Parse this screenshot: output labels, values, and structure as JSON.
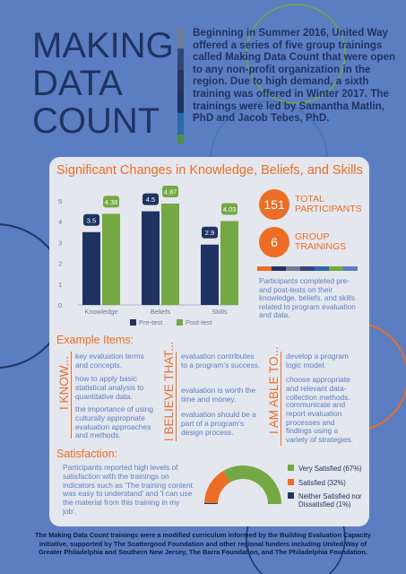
{
  "header": {
    "title_lines": [
      "MAKING",
      "DATA",
      "COUNT"
    ],
    "intro": "Beginning in Summer 2016, United Way offered a series of five group trainings called Making Data Count that were open to any non-profit organization in the region. Due to high demand, a sixth training was offered in Winter 2017. The trainings were led by Samantha Matlin, PhD and Jacob Tebes, PhD."
  },
  "colors": {
    "background": "#5b7ec2",
    "navy": "#1f3362",
    "green": "#74a843",
    "orange": "#ec6d25",
    "card": "#e4e7ee",
    "stripes": [
      "#6c7b96",
      "#31457a",
      "#243660",
      "#1f3362",
      "#2b6aa8",
      "#4f8f41"
    ]
  },
  "card": {
    "title": "Significant Changes in Knowledge, Beliefs, and Skills"
  },
  "chart_data": {
    "type": "bar",
    "categories": [
      "Knowledge",
      "Beliefs",
      "Skills"
    ],
    "series": [
      {
        "name": "Pre-test",
        "values": [
          3.5,
          4.5,
          2.9
        ],
        "labels": [
          "3.5",
          "4.5",
          "2.9"
        ],
        "color": "#1f3362"
      },
      {
        "name": "Post-test",
        "values": [
          4.38,
          4.87,
          4.03
        ],
        "labels": [
          "4.38",
          "4.87",
          "4.03"
        ],
        "color": "#74a843"
      }
    ],
    "y_ticks": [
      0,
      1,
      2,
      3,
      4,
      5
    ],
    "ylim": [
      0,
      5
    ],
    "legend_position": "bottom",
    "grid": false
  },
  "stats": {
    "participants": {
      "value": "151",
      "label_line1": "TOTAL",
      "label_line2": "PARTICIPANTS"
    },
    "trainings": {
      "value": "6",
      "label_line1": "GROUP",
      "label_line2": "TRAININGS"
    },
    "note": "Participants completed pre- and post-tests on their knowledge, beliefs, and skills related to program evaluation and data."
  },
  "examples": {
    "heading": "Example Items:",
    "know": {
      "label": "I KNOW...",
      "items": [
        "key evaluation terms and concepts.",
        "how to apply basic statistical analysis to quantitative data.",
        "the importance of using culturally appropriate evaluation approaches and methods."
      ]
    },
    "believe": {
      "label": "I BELIEVE THAT...",
      "items": [
        "evaluation contributes to a program's success.",
        "evaluation is worth the time and money.",
        "evaluation should be a part of a program's design process."
      ]
    },
    "able": {
      "label": "I AM ABLE TO...",
      "items": [
        "develop a program logic model.",
        "choose appropriate and relevant data-collection methods.",
        "communicate and report evaluation processes and findings using a variety of strategies."
      ]
    }
  },
  "satisfaction": {
    "heading": "Satisfaction:",
    "text": "Participants reported high levels of satisfaction with the trainings on indicators such as 'The training content was easy to understand' and 'I can use the material from this training in my job'.",
    "chart_data": {
      "type": "pie",
      "style": "half-donut",
      "slices": [
        {
          "label": "Very Satisfied (67%)",
          "value": 67,
          "color": "#74a843"
        },
        {
          "label": "Satisfied (32%)",
          "value": 32,
          "color": "#ec6d25"
        },
        {
          "label": "Neither Satisfied nor Dissatisfied (1%)",
          "value": 1,
          "color": "#1f3362"
        }
      ],
      "legend_position": "right"
    },
    "legend": {
      "very": "Very Satisfied (67%)",
      "satisfied": "Satisfied (32%)",
      "neither_line1": "Neither Satisfied nor",
      "neither_line2": "Dissatisfied (1%)"
    }
  },
  "footer": "The Making Data Count trainings were a modified curriculum informed by the Building Evaluation Capacity Initiative, supported by The Scattergood Foundation and other regional funders including United Way of Greater Philadelphia and Southern New Jersey, The Barra Foundation, and The Philadelphia Foundation."
}
